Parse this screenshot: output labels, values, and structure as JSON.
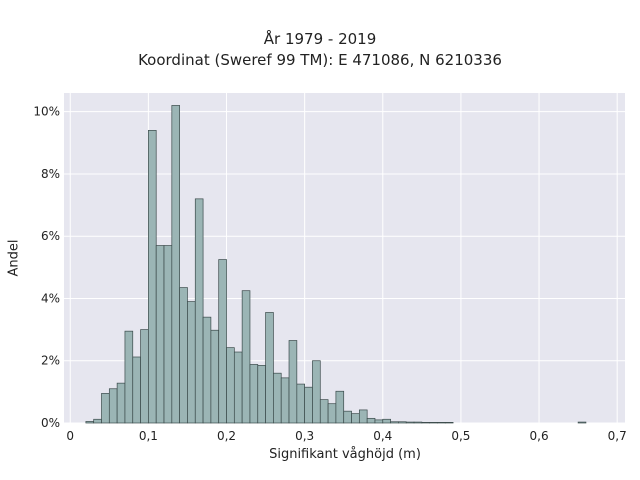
{
  "chart_data": {
    "type": "bar",
    "title_lines": [
      "År 1979 - 2019",
      "Koordinat (Sweref 99 TM): E 471086, N 6210336"
    ],
    "xlabel": "Signifikant våghöjd (m)",
    "ylabel": "Andel",
    "x_ticks": [
      0,
      0.1,
      0.2,
      0.3,
      0.4,
      0.5,
      0.6,
      0.7
    ],
    "x_tick_labels": [
      "0",
      "0,1",
      "0,2",
      "0,3",
      "0,4",
      "0,5",
      "0,6",
      "0,7"
    ],
    "y_ticks": [
      0,
      2,
      4,
      6,
      8,
      10
    ],
    "y_tick_labels": [
      "0%",
      "2%",
      "4%",
      "6%",
      "8%",
      "10%"
    ],
    "xlim": [
      -0.008,
      0.71
    ],
    "ylim": [
      0,
      10.6
    ],
    "grid": true,
    "bin_width": 0.01,
    "bin_starts": [
      0.02,
      0.03,
      0.04,
      0.05,
      0.06,
      0.07,
      0.08,
      0.09,
      0.1,
      0.11,
      0.12,
      0.13,
      0.14,
      0.15,
      0.16,
      0.17,
      0.18,
      0.19,
      0.2,
      0.21,
      0.22,
      0.23,
      0.24,
      0.25,
      0.26,
      0.27,
      0.28,
      0.29,
      0.3,
      0.31,
      0.32,
      0.33,
      0.34,
      0.35,
      0.36,
      0.37,
      0.38,
      0.39,
      0.4,
      0.41,
      0.42,
      0.43,
      0.44,
      0.45,
      0.46,
      0.47,
      0.48,
      0.49,
      0.5,
      0.51,
      0.52,
      0.53,
      0.54,
      0.55,
      0.56,
      0.57,
      0.58,
      0.59,
      0.6,
      0.61,
      0.62,
      0.63,
      0.64,
      0.65
    ],
    "values": [
      0.05,
      0.12,
      0.95,
      1.1,
      1.28,
      2.95,
      2.12,
      3.0,
      9.4,
      5.7,
      5.7,
      10.2,
      4.35,
      3.9,
      7.2,
      3.4,
      2.98,
      5.25,
      2.42,
      2.28,
      4.25,
      1.88,
      1.85,
      3.55,
      1.6,
      1.45,
      2.65,
      1.25,
      1.15,
      2.0,
      0.75,
      0.62,
      1.02,
      0.38,
      0.3,
      0.42,
      0.15,
      0.1,
      0.12,
      0.04,
      0.04,
      0.03,
      0.03,
      0.02,
      0.02,
      0.02,
      0.02,
      0.0,
      0.0,
      0.0,
      0.0,
      0.0,
      0.0,
      0.0,
      0.0,
      0.0,
      0.0,
      0.0,
      0.0,
      0.0,
      0.0,
      0.0,
      0.0,
      0.03
    ],
    "colors": {
      "bar_fill": "#9bb5b5",
      "bar_edge": "#3a4a4a",
      "plot_bg": "#e6e6ef",
      "grid": "#ffffff"
    }
  }
}
